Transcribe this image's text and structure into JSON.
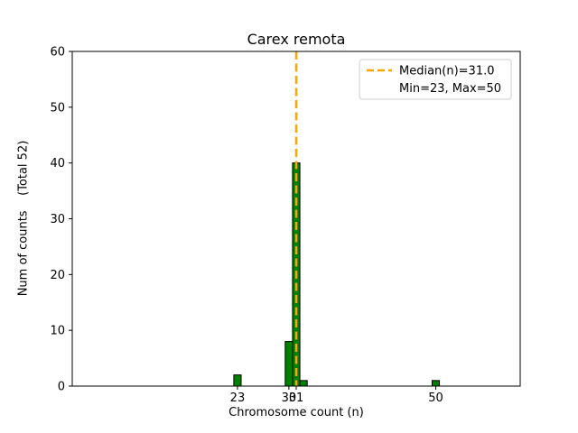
{
  "chart_data": {
    "type": "bar",
    "title": "Carex remota",
    "xlabel": "Chromosome count (n)",
    "ylabel": "Num of counts    (Total 52)",
    "bins": [
      {
        "x": 23,
        "count": 2
      },
      {
        "x": 30,
        "count": 8
      },
      {
        "x": 31,
        "count": 40
      },
      {
        "x": 32,
        "count": 1
      },
      {
        "x": 50,
        "count": 1
      }
    ],
    "bar_width": 1,
    "total": 52,
    "median": 31.0,
    "min": 23,
    "max": 50,
    "xlim": [
      0.5,
      61.5
    ],
    "ylim": [
      0,
      60
    ],
    "xticks": [
      23,
      30,
      31,
      50
    ],
    "yticks": [
      0,
      10,
      20,
      30,
      40,
      50,
      60
    ],
    "grid": false,
    "bar_color": "#008000",
    "bar_edge_color": "#000000",
    "median_line_color": "#ffa500",
    "legend": {
      "position": "upper-right",
      "entries": [
        {
          "label": "Median(n)=31.0",
          "symbol": "dashed-line"
        },
        {
          "label": "Min=23, Max=50",
          "symbol": "none"
        }
      ]
    }
  }
}
